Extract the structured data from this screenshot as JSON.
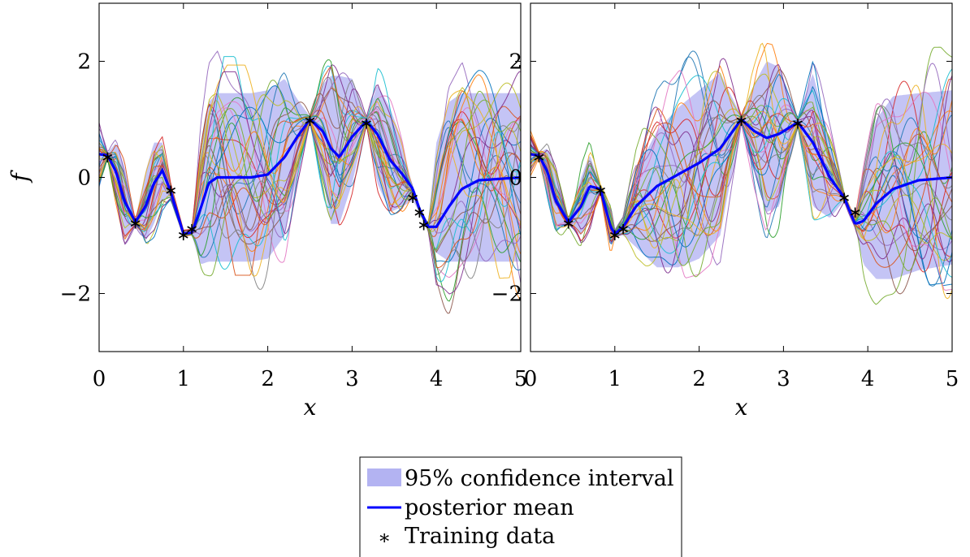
{
  "chart_data": [
    {
      "type": "line",
      "title": "",
      "xlabel": "x",
      "ylabel": "f",
      "xlim": [
        0,
        5
      ],
      "ylim": [
        -3,
        3
      ],
      "xticks": [
        0,
        1,
        2,
        3,
        4,
        5
      ],
      "yticks": [
        -2,
        0,
        2
      ],
      "xtick_labels": [
        "0",
        "1",
        "2",
        "3",
        "4",
        "5"
      ],
      "ytick_labels": [
        "−2",
        "0",
        "2"
      ],
      "grid": false,
      "colors": {
        "ci": "#b3b3f2",
        "mean": "#0000ff",
        "training": "#000000"
      },
      "mean": {
        "x": [
          0,
          0.1,
          0.2,
          0.3,
          0.43,
          0.55,
          0.65,
          0.75,
          0.85,
          1.0,
          1.1,
          1.2,
          1.3,
          1.4,
          1.6,
          1.8,
          2.0,
          2.2,
          2.35,
          2.5,
          2.65,
          2.75,
          2.85,
          3.0,
          3.17,
          3.3,
          3.45,
          3.6,
          3.72,
          3.8,
          3.9,
          4.0,
          4.15,
          4.3,
          4.5,
          5.0
        ],
        "y": [
          0.4,
          0.38,
          0.1,
          -0.4,
          -0.77,
          -0.5,
          -0.1,
          0.12,
          -0.25,
          -0.97,
          -0.95,
          -0.55,
          -0.1,
          0.0,
          0.0,
          0.0,
          0.05,
          0.35,
          0.7,
          1.0,
          0.8,
          0.5,
          0.35,
          0.7,
          0.97,
          0.75,
          0.3,
          0.05,
          -0.2,
          -0.55,
          -0.85,
          -0.85,
          -0.5,
          -0.2,
          -0.05,
          0.0
        ]
      },
      "ci": {
        "x": [
          0,
          0.1,
          0.2,
          0.3,
          0.43,
          0.55,
          0.65,
          0.75,
          0.85,
          1.0,
          1.1,
          1.2,
          1.3,
          1.4,
          1.6,
          1.8,
          2.0,
          2.2,
          2.35,
          2.5,
          2.65,
          2.75,
          2.85,
          3.0,
          3.17,
          3.3,
          3.45,
          3.6,
          3.72,
          3.8,
          3.9,
          4.0,
          4.15,
          4.3,
          4.5,
          5.0
        ],
        "upper": [
          0.8,
          0.42,
          0.6,
          0.2,
          -0.72,
          0.1,
          0.6,
          0.6,
          -0.15,
          -0.92,
          -0.9,
          0.4,
          1.3,
          1.45,
          1.45,
          1.45,
          1.5,
          1.7,
          1.35,
          1.05,
          1.6,
          1.75,
          1.75,
          1.7,
          1.02,
          1.6,
          1.2,
          0.6,
          -0.3,
          -0.5,
          -0.8,
          0.6,
          1.3,
          1.45,
          1.45,
          1.45
        ],
        "lower": [
          -0.2,
          0.34,
          -0.4,
          -1.1,
          -0.82,
          -1.1,
          -0.8,
          -0.4,
          -0.35,
          -1.02,
          -1.0,
          -1.5,
          -1.45,
          -1.45,
          -1.45,
          -1.45,
          -1.4,
          -1.0,
          0.05,
          0.95,
          0.0,
          -0.8,
          -0.8,
          -0.1,
          0.92,
          -0.1,
          -0.6,
          -0.5,
          -0.4,
          -0.6,
          -0.9,
          -1.3,
          -1.45,
          -1.45,
          -1.45,
          -1.45
        ]
      },
      "training_points": {
        "x": [
          0.1,
          0.43,
          0.85,
          1.0,
          1.1,
          2.5,
          3.17,
          3.72,
          3.8,
          3.85
        ],
        "y": [
          0.37,
          -0.77,
          -0.2,
          -0.97,
          -0.87,
          1.0,
          0.95,
          -0.33,
          -0.58,
          -0.8
        ]
      },
      "sample_count": 30,
      "sample_peak_note": "samples reach ~2.5 near x=2.3 and ~-2.3 near x=4.15"
    },
    {
      "type": "line",
      "title": "",
      "xlabel": "x",
      "ylabel": "",
      "xlim": [
        0,
        5
      ],
      "ylim": [
        -3,
        3
      ],
      "xticks": [
        0,
        1,
        2,
        3,
        4,
        5
      ],
      "yticks": [
        -2,
        0,
        2
      ],
      "xtick_labels": [
        "0",
        "1",
        "2",
        "3",
        "4",
        "5"
      ],
      "ytick_labels": [
        "−2",
        "0",
        "2"
      ],
      "grid": false,
      "colors": {
        "ci": "#b3b3f2",
        "mean": "#0000ff",
        "training": "#000000"
      },
      "mean": {
        "x": [
          0,
          0.1,
          0.2,
          0.3,
          0.45,
          0.6,
          0.7,
          0.83,
          0.95,
          1.0,
          1.1,
          1.25,
          1.5,
          1.75,
          2.0,
          2.25,
          2.5,
          2.65,
          2.8,
          2.95,
          3.17,
          3.35,
          3.55,
          3.72,
          3.85,
          3.95,
          4.1,
          4.3,
          4.6,
          5.0
        ],
        "y": [
          0.4,
          0.38,
          0.1,
          -0.4,
          -0.77,
          -0.5,
          -0.15,
          -0.2,
          -0.85,
          -0.97,
          -0.85,
          -0.5,
          -0.15,
          0.05,
          0.25,
          0.5,
          1.0,
          0.8,
          0.68,
          0.75,
          0.95,
          0.6,
          0.0,
          -0.35,
          -0.8,
          -0.75,
          -0.45,
          -0.2,
          -0.05,
          0.0
        ]
      },
      "ci": {
        "x": [
          0,
          0.1,
          0.2,
          0.3,
          0.45,
          0.6,
          0.7,
          0.83,
          0.95,
          1.0,
          1.1,
          1.25,
          1.5,
          1.75,
          2.0,
          2.25,
          2.5,
          2.65,
          2.8,
          2.95,
          3.17,
          3.35,
          3.55,
          3.72,
          3.85,
          3.95,
          4.1,
          4.3,
          4.6,
          5.0
        ],
        "upper": [
          0.7,
          0.42,
          0.5,
          0.1,
          -0.72,
          0.0,
          0.4,
          -0.15,
          -0.5,
          -0.92,
          -0.75,
          0.1,
          0.8,
          1.2,
          1.5,
          1.8,
          1.05,
          1.6,
          2.0,
          1.9,
          1.02,
          1.8,
          0.6,
          -0.3,
          -0.7,
          0.2,
          1.0,
          1.4,
          1.45,
          1.5
        ],
        "lower": [
          0.1,
          0.34,
          -0.3,
          -0.9,
          -0.82,
          -1.0,
          -0.7,
          -0.25,
          -1.2,
          -1.02,
          -1.0,
          -1.2,
          -1.55,
          -1.55,
          -1.4,
          -1.0,
          0.95,
          0.1,
          -0.6,
          -0.5,
          0.9,
          -0.5,
          -0.7,
          -0.4,
          -0.85,
          -1.5,
          -1.75,
          -1.75,
          -1.6,
          -1.5
        ]
      },
      "training_points": {
        "x": [
          0.1,
          0.45,
          0.83,
          1.0,
          1.1,
          2.5,
          3.17,
          3.72,
          3.85
        ],
        "y": [
          0.37,
          -0.77,
          -0.2,
          -0.97,
          -0.87,
          1.0,
          0.95,
          -0.33,
          -0.58
        ]
      },
      "sample_count": 30
    }
  ],
  "legend": {
    "items": [
      {
        "label": "95% confidence interval",
        "kind": "patch"
      },
      {
        "label": "posterior mean",
        "kind": "line"
      },
      {
        "label": "Training data",
        "kind": "marker",
        "symbol": "∗"
      }
    ]
  }
}
